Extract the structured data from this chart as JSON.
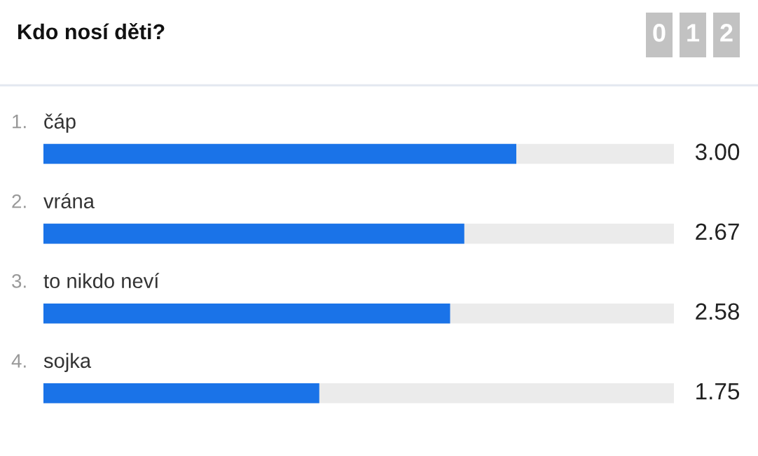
{
  "chart_data": {
    "type": "bar",
    "orientation": "horizontal",
    "title": "Kdo nosí děti?",
    "categories": [
      "čáp",
      "vrána",
      "to nikdo neví",
      "sojka"
    ],
    "values": [
      3.0,
      2.67,
      2.58,
      1.75
    ],
    "value_labels": [
      "3.00",
      "2.67",
      "2.58",
      "1.75"
    ],
    "color": "#1a73e8",
    "xlim": [
      0,
      4
    ],
    "annotations": [
      "1.",
      "2.",
      "3.",
      "4.",
      "012"
    ]
  }
}
